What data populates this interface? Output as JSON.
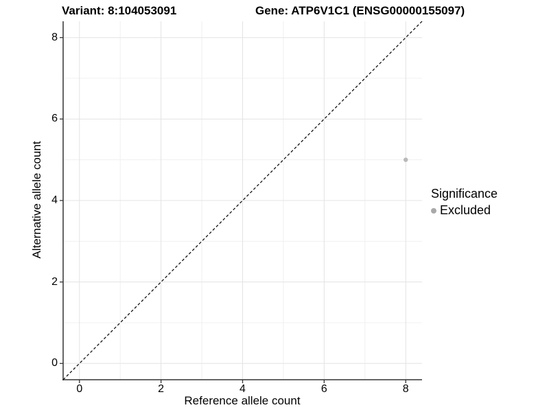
{
  "chart_data": {
    "type": "scatter",
    "titles": {
      "left": "Variant: 8:104053091",
      "right": "Gene: ATP6V1C1 (ENSG00000155097)"
    },
    "xlabel": "Reference allele count",
    "ylabel": "Alternative allele count",
    "xlim": [
      -0.4,
      8.4
    ],
    "ylim": [
      -0.4,
      8.4
    ],
    "x_ticks": [
      0,
      2,
      4,
      6,
      8
    ],
    "y_ticks": [
      0,
      2,
      4,
      6,
      8
    ],
    "x_minor_ticks": [
      1,
      3,
      5,
      7
    ],
    "y_minor_ticks": [
      1,
      3,
      5,
      7
    ],
    "grid": "major and minor, light gray on white",
    "reference_line": {
      "type": "identity y=x",
      "style": "dashed",
      "color": "#000000"
    },
    "series": [
      {
        "name": "Excluded",
        "color": "#b9b9b9",
        "points": [
          {
            "x": 8,
            "y": 5,
            "significance": "Excluded"
          }
        ]
      }
    ],
    "legend": {
      "title": "Significance",
      "position": "right",
      "items": [
        {
          "label": "Excluded",
          "color": "#a9a9a9"
        }
      ]
    }
  },
  "colors": {
    "background": "#ffffff",
    "grid_major": "#e3e3e3",
    "grid_minor": "#f0f0f0",
    "axis_line": "#333333",
    "tick_mark": "#333333",
    "text": "#000000"
  }
}
